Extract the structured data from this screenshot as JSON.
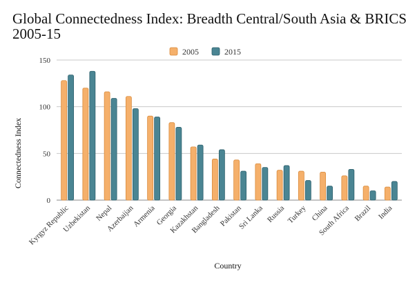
{
  "chart_data": {
    "type": "bar",
    "title_line1": "Global Connectedness Index: Breadth Central/South Asia & BRICS",
    "title_line2": "2005-15",
    "xlabel": "Country",
    "ylabel": "Connectedness Index",
    "ylim": [
      0,
      150
    ],
    "yticks": [
      0,
      50,
      100,
      150
    ],
    "grid": true,
    "legend_position": "top-center",
    "categories": [
      "Kyrgyz Republic",
      "Uzbekistan",
      "Nepal",
      "Azerbaijan",
      "Armenia",
      "Georgia",
      "Kazakhstan",
      "Bangladesh",
      "Pakistan",
      "Sri Lanka",
      "Russia",
      "Turkey",
      "China",
      "South Africa",
      "Brazil",
      "India"
    ],
    "series": [
      {
        "name": "2005",
        "color": "#f5b06b",
        "stroke": "#d98b3c",
        "values": [
          128,
          120,
          116,
          111,
          90,
          83,
          57,
          44,
          43,
          39,
          32,
          31,
          30,
          26,
          15,
          14
        ]
      },
      {
        "name": "2015",
        "color": "#4a8593",
        "stroke": "#2c5f6b",
        "values": [
          134,
          138,
          109,
          98,
          89,
          78,
          59,
          54,
          31,
          35,
          37,
          21,
          15,
          33,
          10,
          20
        ]
      }
    ]
  }
}
